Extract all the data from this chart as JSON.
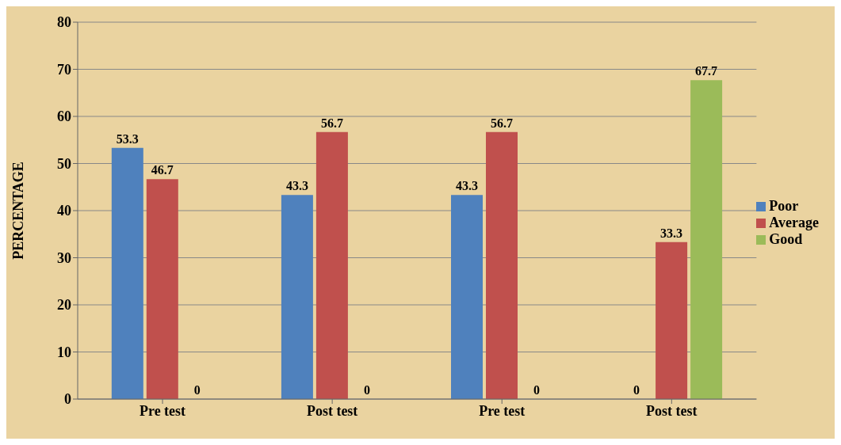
{
  "chart_data": {
    "type": "bar",
    "ylabel": "PERCENTAGE",
    "categories": [
      "Pre test",
      "Post test",
      "Pre test",
      "Post test"
    ],
    "series": [
      {
        "name": "Poor",
        "color": "#4f81bd",
        "values": [
          53.3,
          43.3,
          43.3,
          0
        ]
      },
      {
        "name": "Average",
        "color": "#c0504d",
        "values": [
          46.7,
          56.7,
          56.7,
          33.3
        ]
      },
      {
        "name": "Good",
        "color": "#9bbb59",
        "values": [
          0,
          0,
          0,
          67.7
        ]
      }
    ],
    "ylim": [
      0,
      80
    ],
    "yticks": [
      0,
      10,
      20,
      30,
      40,
      50,
      60,
      70,
      80
    ],
    "grid": "y",
    "legend": "right",
    "data_labels": true
  }
}
